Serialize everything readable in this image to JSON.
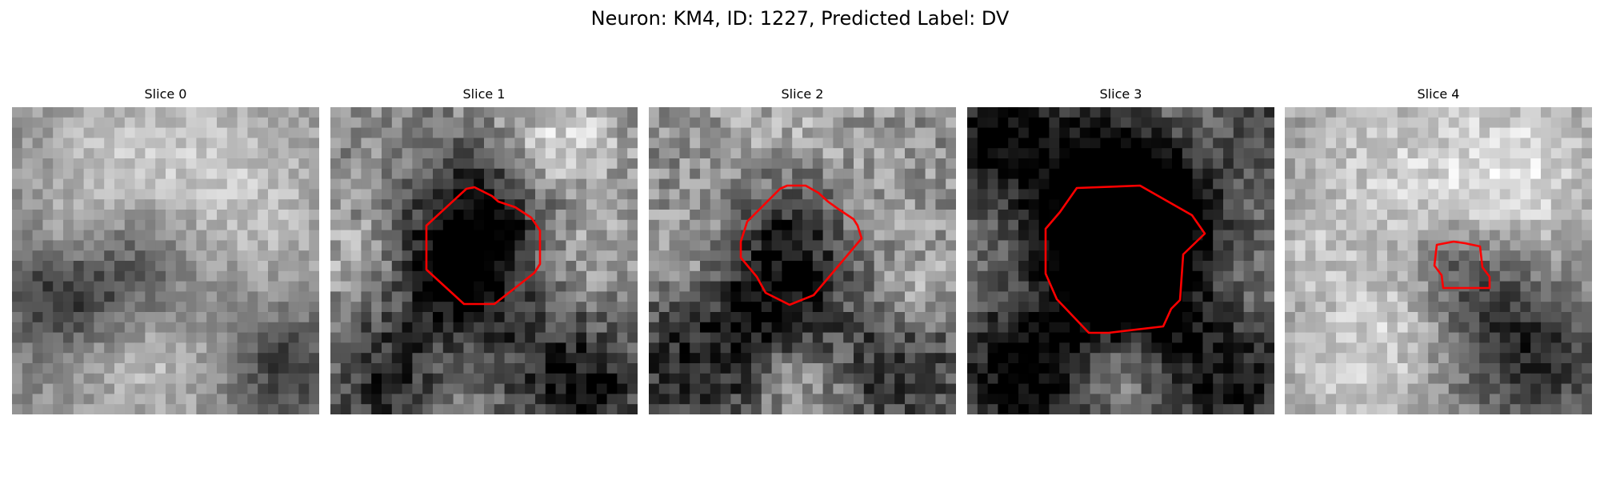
{
  "figure": {
    "suptitle": "Neuron: KM4, ID: 1227, Predicted Label: DV"
  },
  "panels": [
    {
      "title": "Slice 0",
      "has_contour": false
    },
    {
      "title": "Slice 1",
      "has_contour": true
    },
    {
      "title": "Slice 2",
      "has_contour": true
    },
    {
      "title": "Slice 3",
      "has_contour": true
    },
    {
      "title": "Slice 4",
      "has_contour": true
    }
  ],
  "colors": {
    "contour": "#ff0000",
    "background": "#ffffff"
  }
}
